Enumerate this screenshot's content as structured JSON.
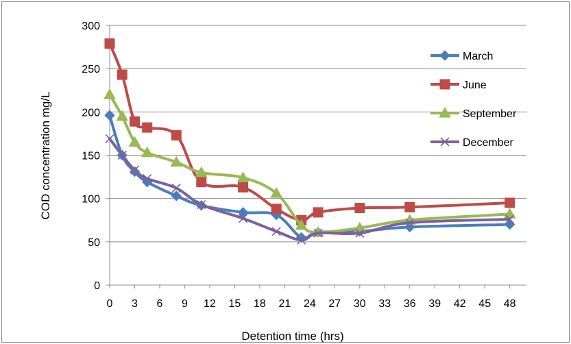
{
  "chart_data": {
    "type": "line",
    "title": "",
    "xlabel": "Detention time (hrs)",
    "ylabel": "COD concentration  mg/L",
    "xlim": [
      0,
      50
    ],
    "ylim": [
      0,
      300
    ],
    "xticks": [
      0,
      3,
      6,
      9,
      12,
      15,
      18,
      21,
      24,
      27,
      30,
      33,
      36,
      39,
      42,
      45,
      48
    ],
    "yticks": [
      0,
      50,
      100,
      150,
      200,
      250,
      300
    ],
    "grid": "horizontal",
    "legend_position": "right",
    "series": [
      {
        "name": "March",
        "color": "#4a7ebb",
        "marker": "diamond",
        "points": [
          [
            0,
            196
          ],
          [
            1.5,
            150
          ],
          [
            3,
            131
          ],
          [
            4.5,
            119
          ],
          [
            8,
            103
          ],
          [
            11,
            92
          ],
          [
            16,
            84
          ],
          [
            20,
            81
          ],
          [
            23,
            55
          ],
          [
            25,
            61
          ],
          [
            30,
            62
          ],
          [
            36,
            67
          ],
          [
            48,
            70
          ]
        ]
      },
      {
        "name": "June",
        "color": "#be4b48",
        "marker": "square",
        "points": [
          [
            0,
            279
          ],
          [
            1.5,
            243
          ],
          [
            3,
            189
          ],
          [
            4.5,
            182
          ],
          [
            8,
            173
          ],
          [
            11,
            119
          ],
          [
            16,
            113
          ],
          [
            20,
            88
          ],
          [
            23,
            75
          ],
          [
            25,
            84
          ],
          [
            30,
            89
          ],
          [
            36,
            90
          ],
          [
            48,
            95
          ]
        ]
      },
      {
        "name": "September",
        "color": "#98b954",
        "marker": "triangle",
        "points": [
          [
            0,
            220
          ],
          [
            1.5,
            195
          ],
          [
            3,
            165
          ],
          [
            4.5,
            153
          ],
          [
            8,
            142
          ],
          [
            11,
            130
          ],
          [
            16,
            124
          ],
          [
            20,
            106
          ],
          [
            23,
            69
          ],
          [
            25,
            61
          ],
          [
            30,
            66
          ],
          [
            36,
            75
          ],
          [
            48,
            82
          ]
        ]
      },
      {
        "name": "December",
        "color": "#7d60a0",
        "marker": "x",
        "points": [
          [
            0,
            169
          ],
          [
            1.5,
            150
          ],
          [
            3,
            133
          ],
          [
            4.5,
            123
          ],
          [
            8,
            112
          ],
          [
            11,
            93
          ],
          [
            16,
            77
          ],
          [
            20,
            62
          ],
          [
            23,
            52
          ],
          [
            25,
            60
          ],
          [
            30,
            60
          ],
          [
            36,
            72
          ],
          [
            48,
            76
          ]
        ]
      }
    ]
  }
}
